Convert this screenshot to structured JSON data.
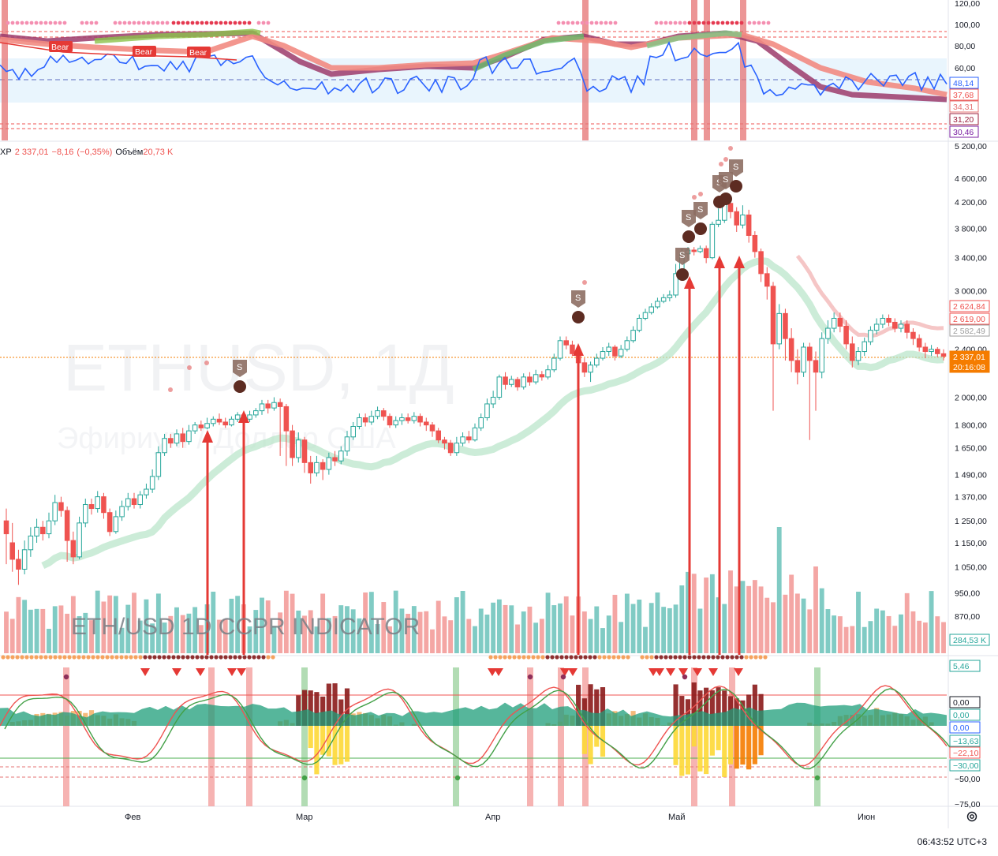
{
  "symbol_line": {
    "symbol_fragment": "XP",
    "last": "2 337,01",
    "change": "−8,16",
    "change_pct": "(−0,35%)",
    "volume_label": "Объём",
    "volume_value": "20,73 K"
  },
  "watermark": {
    "ticker": "ETHUSD, 1Д",
    "description": "Эфириум / Доллар США"
  },
  "overlay_title": "ETH/USD 1D   CCPR INDICATOR",
  "colors": {
    "up": "#26a69a",
    "down": "#ef5350",
    "arrow": "#e53935",
    "blue_line": "#2962ff",
    "ma_band": "#b7e4c7",
    "ma_red": "#f3b8b8",
    "signal_bar": "#e57373",
    "osc_green": "#1e9e7a"
  },
  "top_panel": {
    "bear_labels": [
      "Bear",
      "Bear",
      "Bear"
    ],
    "axis_ticks": [
      "120,00",
      "100,00",
      "80,00",
      "60,00"
    ],
    "price_tags": [
      {
        "text": "48,14",
        "color": "#2962ff"
      },
      {
        "text": "37,68",
        "color": "#ef5350"
      },
      {
        "text": "34,31",
        "color": "#e57373"
      },
      {
        "text": "31,20",
        "color": "#9c1f3d"
      },
      {
        "text": "30,46",
        "color": "#7b1fa2"
      }
    ]
  },
  "main_panel": {
    "axis_ticks": [
      "5 200,00",
      "4 600,00",
      "4 200,00",
      "3 800,00",
      "3 400,00",
      "3 000,00",
      "2 400,00",
      "2 000,00",
      "1 800,00",
      "1 650,00",
      "1 490,00",
      "1 370,00",
      "1 250,00",
      "1 150,00",
      "1 050,00",
      "950,00",
      "870,00"
    ],
    "price_tags": [
      {
        "text": "2 624,84",
        "color": "#ef5350",
        "bg": "#ffffff"
      },
      {
        "text": "2 619,00",
        "color": "#ef5350",
        "bg": "#ffffff"
      },
      {
        "text": "2 582,49",
        "color": "#9e9e9e",
        "bg": "#ffffff"
      },
      {
        "text": "2 337,01",
        "color": "#ffffff",
        "bg": "#f57c00"
      },
      {
        "text": "20:16:08",
        "color": "#ffffff",
        "bg": "#f57c00"
      },
      {
        "text": "284,53 K",
        "color": "#26a69a",
        "bg": "#ffffff"
      }
    ],
    "sell_marker": "S",
    "ref_line_price": "2 337,01"
  },
  "bottom_panel": {
    "axis_ticks": [
      "0,00",
      "0,00",
      "0,00",
      "−50,00",
      "−75,00"
    ],
    "price_tags": [
      {
        "text": "5,46",
        "color": "#26a69a"
      },
      {
        "text": "0,00",
        "color": "#131722"
      },
      {
        "text": "0,00",
        "color": "#26a69a"
      },
      {
        "text": "0,00",
        "color": "#2962ff"
      },
      {
        "text": "−13,63",
        "color": "#26a69a"
      },
      {
        "text": "−22,10",
        "color": "#ef5350"
      },
      {
        "text": "−30,00",
        "color": "#26a69a"
      }
    ]
  },
  "time_axis": {
    "months": [
      "Фев",
      "Мар",
      "Апр",
      "Май",
      "Июн"
    ]
  },
  "clock": "06:43:52 UTC+3",
  "chart_data": {
    "type": "candlestick",
    "title": "ETH/USD 1D   CCPR INDICATOR",
    "x_labels": [
      "Фев",
      "Мар",
      "Апр",
      "Май",
      "Июн"
    ],
    "y_scale": "log",
    "ylim": [
      870,
      5200
    ],
    "last_price": 2337.01,
    "ohlc": [
      [
        1250,
        1190,
        1310,
        1060
      ],
      [
        1150,
        1080,
        1240,
        1030
      ],
      [
        1080,
        1040,
        1120,
        980
      ],
      [
        1040,
        1120,
        1160,
        1020
      ],
      [
        1120,
        1180,
        1220,
        1090
      ],
      [
        1180,
        1220,
        1260,
        1150
      ],
      [
        1220,
        1190,
        1250,
        1160
      ],
      [
        1190,
        1250,
        1290,
        1170
      ],
      [
        1250,
        1340,
        1380,
        1230
      ],
      [
        1340,
        1300,
        1370,
        1270
      ],
      [
        1300,
        1160,
        1320,
        1070
      ],
      [
        1160,
        1090,
        1200,
        1060
      ],
      [
        1090,
        1240,
        1270,
        1080
      ],
      [
        1240,
        1330,
        1360,
        1220
      ],
      [
        1330,
        1310,
        1360,
        1280
      ],
      [
        1310,
        1370,
        1400,
        1290
      ],
      [
        1370,
        1290,
        1390,
        1260
      ],
      [
        1290,
        1200,
        1310,
        1180
      ],
      [
        1200,
        1270,
        1300,
        1190
      ],
      [
        1270,
        1320,
        1350,
        1250
      ],
      [
        1320,
        1360,
        1390,
        1300
      ],
      [
        1360,
        1330,
        1390,
        1310
      ],
      [
        1330,
        1380,
        1400,
        1310
      ],
      [
        1380,
        1410,
        1440,
        1360
      ],
      [
        1410,
        1480,
        1520,
        1390
      ],
      [
        1480,
        1620,
        1660,
        1460
      ],
      [
        1620,
        1710,
        1740,
        1600
      ],
      [
        1710,
        1680,
        1740,
        1650
      ],
      [
        1680,
        1740,
        1770,
        1660
      ],
      [
        1740,
        1690,
        1780,
        1650
      ],
      [
        1690,
        1760,
        1800,
        1670
      ],
      [
        1760,
        1800,
        1820,
        1740
      ],
      [
        1800,
        1780,
        1830,
        1760
      ],
      [
        1780,
        1810,
        1850,
        1770
      ],
      [
        1810,
        1840,
        1860,
        1790
      ],
      [
        1840,
        1820,
        1880,
        1800
      ],
      [
        1820,
        1800,
        1850,
        1780
      ],
      [
        1800,
        1840,
        1860,
        1790
      ],
      [
        1840,
        1870,
        1890,
        1820
      ],
      [
        1870,
        1840,
        1880,
        1800
      ],
      [
        1840,
        1870,
        1900,
        1820
      ],
      [
        1870,
        1900,
        1920,
        1850
      ],
      [
        1900,
        1950,
        1980,
        1870
      ],
      [
        1950,
        1920,
        1980,
        1880
      ],
      [
        1920,
        1960,
        2000,
        1900
      ],
      [
        1960,
        1930,
        1990,
        1600
      ],
      [
        1930,
        1760,
        1950,
        1540
      ],
      [
        1760,
        1590,
        1800,
        1540
      ],
      [
        1590,
        1700,
        1750,
        1560
      ],
      [
        1700,
        1560,
        1720,
        1500
      ],
      [
        1560,
        1500,
        1600,
        1440
      ],
      [
        1500,
        1560,
        1600,
        1480
      ],
      [
        1560,
        1520,
        1580,
        1460
      ],
      [
        1520,
        1590,
        1620,
        1490
      ],
      [
        1590,
        1570,
        1630,
        1540
      ],
      [
        1570,
        1630,
        1660,
        1550
      ],
      [
        1630,
        1720,
        1760,
        1600
      ],
      [
        1720,
        1790,
        1820,
        1700
      ],
      [
        1790,
        1850,
        1880,
        1770
      ],
      [
        1850,
        1820,
        1880,
        1790
      ],
      [
        1820,
        1860,
        1900,
        1800
      ],
      [
        1860,
        1900,
        1930,
        1840
      ],
      [
        1900,
        1860,
        1920,
        1830
      ],
      [
        1860,
        1800,
        1880,
        1780
      ],
      [
        1800,
        1830,
        1860,
        1780
      ],
      [
        1830,
        1850,
        1880,
        1800
      ],
      [
        1850,
        1830,
        1880,
        1810
      ],
      [
        1830,
        1860,
        1890,
        1810
      ],
      [
        1860,
        1820,
        1880,
        1790
      ],
      [
        1820,
        1800,
        1850,
        1760
      ],
      [
        1800,
        1760,
        1820,
        1720
      ],
      [
        1760,
        1700,
        1780,
        1680
      ],
      [
        1700,
        1680,
        1720,
        1640
      ],
      [
        1680,
        1620,
        1700,
        1600
      ],
      [
        1620,
        1680,
        1720,
        1600
      ],
      [
        1680,
        1720,
        1750,
        1660
      ],
      [
        1720,
        1700,
        1760,
        1680
      ],
      [
        1700,
        1780,
        1810,
        1690
      ],
      [
        1780,
        1850,
        1880,
        1760
      ],
      [
        1850,
        1950,
        1990,
        1830
      ],
      [
        1950,
        2000,
        2050,
        1920
      ],
      [
        2000,
        2160,
        2180,
        1980
      ],
      [
        2160,
        2100,
        2200,
        2060
      ],
      [
        2100,
        2140,
        2170,
        2080
      ],
      [
        2140,
        2080,
        2160,
        2050
      ],
      [
        2080,
        2160,
        2190,
        2060
      ],
      [
        2160,
        2120,
        2200,
        2090
      ],
      [
        2120,
        2180,
        2220,
        2100
      ],
      [
        2180,
        2160,
        2210,
        2130
      ],
      [
        2160,
        2220,
        2260,
        2140
      ],
      [
        2220,
        2320,
        2360,
        2200
      ],
      [
        2320,
        2480,
        2520,
        2300
      ],
      [
        2480,
        2440,
        2520,
        2400
      ],
      [
        2440,
        2360,
        2480,
        2340
      ],
      [
        2360,
        2280,
        2400,
        2240
      ],
      [
        2280,
        2200,
        2320,
        2160
      ],
      [
        2200,
        2260,
        2290,
        2120
      ],
      [
        2260,
        2320,
        2360,
        2240
      ],
      [
        2320,
        2380,
        2420,
        2300
      ],
      [
        2380,
        2420,
        2460,
        2340
      ],
      [
        2420,
        2340,
        2440,
        2300
      ],
      [
        2340,
        2400,
        2440,
        2320
      ],
      [
        2400,
        2480,
        2520,
        2380
      ],
      [
        2480,
        2580,
        2620,
        2460
      ],
      [
        2580,
        2700,
        2740,
        2560
      ],
      [
        2700,
        2760,
        2800,
        2680
      ],
      [
        2760,
        2820,
        2860,
        2740
      ],
      [
        2820,
        2880,
        2920,
        2800
      ],
      [
        2880,
        2920,
        2960,
        2860
      ],
      [
        2920,
        2950,
        3000,
        2880
      ],
      [
        2950,
        3200,
        3320,
        2920
      ],
      [
        3200,
        3450,
        3520,
        3150
      ],
      [
        3450,
        3500,
        3540,
        3380
      ],
      [
        3500,
        3480,
        3540,
        3430
      ],
      [
        3480,
        3520,
        3560,
        3460
      ],
      [
        3520,
        3400,
        3560,
        3330
      ],
      [
        3400,
        3860,
        3900,
        3380
      ],
      [
        3860,
        3920,
        4100,
        3820
      ],
      [
        3920,
        4180,
        4260,
        3880
      ],
      [
        4180,
        4050,
        4250,
        3950
      ],
      [
        4050,
        3850,
        4120,
        3750
      ],
      [
        3850,
        4000,
        4150,
        3800
      ],
      [
        4000,
        3700,
        4080,
        3600
      ],
      [
        3700,
        3480,
        3760,
        3400
      ],
      [
        3480,
        3200,
        3520,
        3100
      ],
      [
        3200,
        3050,
        3280,
        2900
      ],
      [
        3050,
        2450,
        3100,
        1900
      ],
      [
        2450,
        2750,
        2850,
        2400
      ],
      [
        2750,
        2500,
        2800,
        2300
      ],
      [
        2500,
        2300,
        2600,
        2200
      ],
      [
        2300,
        2200,
        2400,
        2100
      ],
      [
        2200,
        2420,
        2460,
        2160
      ],
      [
        2420,
        2300,
        2460,
        1700
      ],
      [
        2300,
        2200,
        2380,
        1900
      ],
      [
        2200,
        2500,
        2560,
        2150
      ],
      [
        2500,
        2600,
        2680,
        2450
      ],
      [
        2600,
        2700,
        2760,
        2560
      ],
      [
        2700,
        2620,
        2760,
        2560
      ],
      [
        2620,
        2450,
        2680,
        2400
      ],
      [
        2450,
        2300,
        2520,
        2240
      ],
      [
        2300,
        2380,
        2420,
        2260
      ],
      [
        2380,
        2470,
        2510,
        2340
      ],
      [
        2470,
        2580,
        2620,
        2440
      ],
      [
        2580,
        2640,
        2700,
        2540
      ],
      [
        2640,
        2700,
        2740,
        2600
      ],
      [
        2700,
        2660,
        2740,
        2620
      ],
      [
        2660,
        2600,
        2700,
        2560
      ],
      [
        2600,
        2640,
        2680,
        2560
      ],
      [
        2640,
        2560,
        2680,
        2500
      ],
      [
        2560,
        2500,
        2600,
        2440
      ],
      [
        2500,
        2420,
        2540,
        2380
      ],
      [
        2420,
        2380,
        2460,
        2320
      ],
      [
        2380,
        2400,
        2440,
        2340
      ],
      [
        2400,
        2360,
        2420,
        2330
      ],
      [
        2360,
        2337,
        2400,
        2300
      ]
    ],
    "sell_signal_indices": [
      52,
      54,
      96,
      112,
      115,
      119,
      122
    ],
    "volume_unit": "K"
  }
}
